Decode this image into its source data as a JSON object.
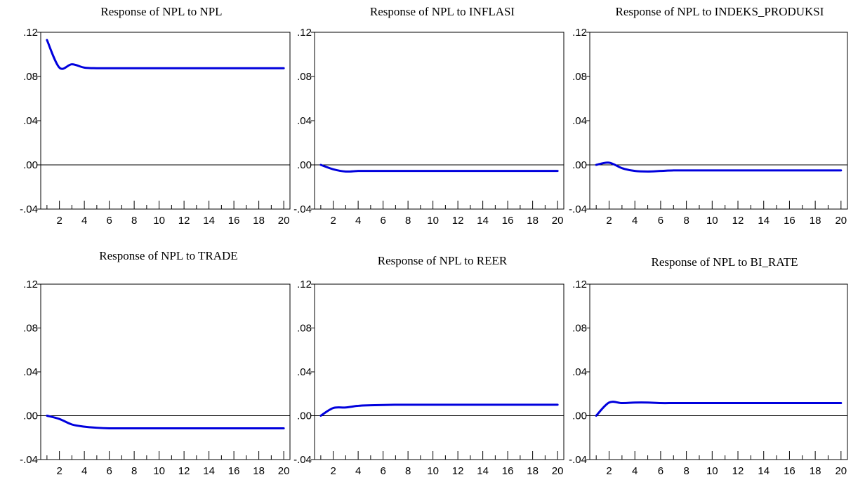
{
  "colors": {
    "series": "#0000dd",
    "frame": "#000000",
    "zero_line": "#000000"
  },
  "chart_data": [
    {
      "type": "line",
      "title": "Response of NPL to NPL",
      "x": [
        1,
        2,
        3,
        4,
        5,
        6,
        7,
        8,
        9,
        10,
        11,
        12,
        13,
        14,
        15,
        16,
        17,
        18,
        19,
        20
      ],
      "series": [
        {
          "values": [
            0.113,
            0.088,
            0.091,
            0.088,
            0.0875,
            0.0875,
            0.0875,
            0.0875,
            0.0875,
            0.0875,
            0.0875,
            0.0875,
            0.0875,
            0.0875,
            0.0875,
            0.0875,
            0.0875,
            0.0875,
            0.0875,
            0.0875
          ]
        }
      ],
      "ylim": [
        -0.04,
        0.12
      ],
      "yticks": [
        ".12",
        ".08",
        ".04",
        ".00",
        "-.04"
      ],
      "xticks": [
        "2",
        "4",
        "6",
        "8",
        "10",
        "12",
        "14",
        "16",
        "18",
        "20"
      ],
      "grid": false
    },
    {
      "type": "line",
      "title": "Response of NPL to INFLASI",
      "x": [
        1,
        2,
        3,
        4,
        5,
        6,
        7,
        8,
        9,
        10,
        11,
        12,
        13,
        14,
        15,
        16,
        17,
        18,
        19,
        20
      ],
      "series": [
        {
          "values": [
            0.0,
            -0.004,
            -0.006,
            -0.0055,
            -0.0055,
            -0.0055,
            -0.0055,
            -0.0055,
            -0.0055,
            -0.0055,
            -0.0055,
            -0.0055,
            -0.0055,
            -0.0055,
            -0.0055,
            -0.0055,
            -0.0055,
            -0.0055,
            -0.0055,
            -0.0055
          ]
        }
      ],
      "ylim": [
        -0.04,
        0.12
      ],
      "yticks": [
        ".12",
        ".08",
        ".04",
        ".00",
        "-.04"
      ],
      "xticks": [
        "2",
        "4",
        "6",
        "8",
        "10",
        "12",
        "14",
        "16",
        "18",
        "20"
      ],
      "grid": false
    },
    {
      "type": "line",
      "title": "Response of NPL to INDEKS_PRODUKSI",
      "x": [
        1,
        2,
        3,
        4,
        5,
        6,
        7,
        8,
        9,
        10,
        11,
        12,
        13,
        14,
        15,
        16,
        17,
        18,
        19,
        20
      ],
      "series": [
        {
          "values": [
            0.0,
            0.002,
            -0.003,
            -0.0055,
            -0.006,
            -0.0055,
            -0.005,
            -0.005,
            -0.005,
            -0.005,
            -0.005,
            -0.005,
            -0.005,
            -0.005,
            -0.005,
            -0.005,
            -0.005,
            -0.005,
            -0.005,
            -0.005
          ]
        }
      ],
      "ylim": [
        -0.04,
        0.12
      ],
      "yticks": [
        ".12",
        ".08",
        ".04",
        ".00",
        "-.04"
      ],
      "xticks": [
        "2",
        "4",
        "6",
        "8",
        "10",
        "12",
        "14",
        "16",
        "18",
        "20"
      ],
      "grid": false
    },
    {
      "type": "line",
      "title": "Response of NPL to TRADE",
      "x": [
        1,
        2,
        3,
        4,
        5,
        6,
        7,
        8,
        9,
        10,
        11,
        12,
        13,
        14,
        15,
        16,
        17,
        18,
        19,
        20
      ],
      "series": [
        {
          "values": [
            0.0,
            -0.003,
            -0.008,
            -0.01,
            -0.011,
            -0.0115,
            -0.0115,
            -0.0115,
            -0.0115,
            -0.0115,
            -0.0115,
            -0.0115,
            -0.0115,
            -0.0115,
            -0.0115,
            -0.0115,
            -0.0115,
            -0.0115,
            -0.0115,
            -0.0115
          ]
        }
      ],
      "ylim": [
        -0.04,
        0.12
      ],
      "yticks": [
        ".12",
        ".08",
        ".04",
        ".00",
        "-.04"
      ],
      "xticks": [
        "2",
        "4",
        "6",
        "8",
        "10",
        "12",
        "14",
        "16",
        "18",
        "20"
      ],
      "grid": false
    },
    {
      "type": "line",
      "title": "Response of NPL to REER",
      "x": [
        1,
        2,
        3,
        4,
        5,
        6,
        7,
        8,
        9,
        10,
        11,
        12,
        13,
        14,
        15,
        16,
        17,
        18,
        19,
        20
      ],
      "series": [
        {
          "values": [
            0.0,
            0.007,
            0.0075,
            0.009,
            0.0095,
            0.0098,
            0.01,
            0.01,
            0.01,
            0.01,
            0.01,
            0.01,
            0.01,
            0.01,
            0.01,
            0.01,
            0.01,
            0.01,
            0.01,
            0.01
          ]
        }
      ],
      "ylim": [
        -0.04,
        0.12
      ],
      "yticks": [
        ".12",
        ".08",
        ".04",
        ".00",
        "-.04"
      ],
      "xticks": [
        "2",
        "4",
        "6",
        "8",
        "10",
        "12",
        "14",
        "16",
        "18",
        "20"
      ],
      "grid": false
    },
    {
      "type": "line",
      "title": "Response of NPL to BI_RATE",
      "x": [
        1,
        2,
        3,
        4,
        5,
        6,
        7,
        8,
        9,
        10,
        11,
        12,
        13,
        14,
        15,
        16,
        17,
        18,
        19,
        20
      ],
      "series": [
        {
          "values": [
            0.0,
            0.012,
            0.0115,
            0.012,
            0.012,
            0.0115,
            0.0115,
            0.0115,
            0.0115,
            0.0115,
            0.0115,
            0.0115,
            0.0115,
            0.0115,
            0.0115,
            0.0115,
            0.0115,
            0.0115,
            0.0115,
            0.0115
          ]
        }
      ],
      "ylim": [
        -0.04,
        0.12
      ],
      "yticks": [
        ".12",
        ".08",
        ".04",
        ".00",
        "-.04"
      ],
      "xticks": [
        "2",
        "4",
        "6",
        "8",
        "10",
        "12",
        "14",
        "16",
        "18",
        "20"
      ],
      "grid": false
    }
  ]
}
